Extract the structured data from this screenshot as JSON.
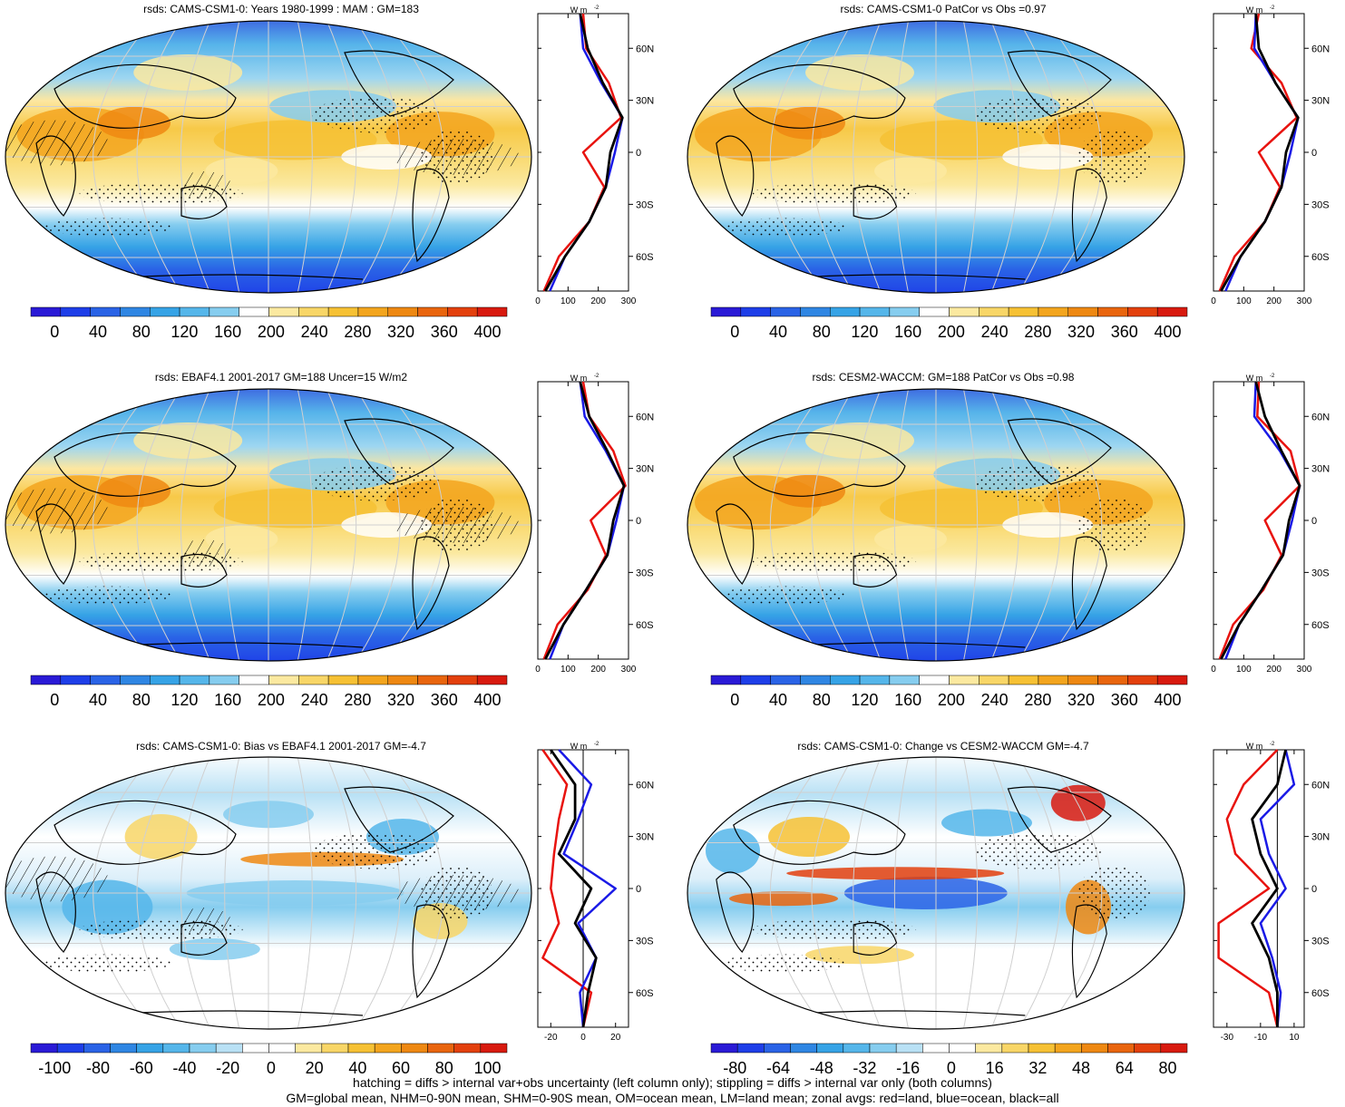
{
  "panels": [
    {
      "id": "p1",
      "title": "rsds: CAMS-CSM1-0: Years 1980-1999 : MAM : GM=183",
      "kind": "abs",
      "cbar_labels": [
        "0",
        "40",
        "80",
        "120",
        "160",
        "200",
        "240",
        "280",
        "320",
        "360",
        "400"
      ],
      "zonal_xticks": [
        "0",
        "100",
        "200",
        "300"
      ],
      "zonal_xlim": [
        0,
        300
      ]
    },
    {
      "id": "p2",
      "title": "rsds: CAMS-CSM1-0 PatCor vs Obs =0.97",
      "kind": "abs",
      "cbar_labels": [
        "0",
        "40",
        "80",
        "120",
        "160",
        "200",
        "240",
        "280",
        "320",
        "360",
        "400"
      ],
      "zonal_xticks": [
        "0",
        "100",
        "200",
        "300"
      ],
      "zonal_xlim": [
        0,
        300
      ]
    },
    {
      "id": "p3",
      "title": "rsds: EBAF4.1 2001-2017 GM=188 Uncer=15 W/m2",
      "kind": "abs",
      "cbar_labels": [
        "0",
        "40",
        "80",
        "120",
        "160",
        "200",
        "240",
        "280",
        "320",
        "360",
        "400"
      ],
      "zonal_xticks": [
        "0",
        "100",
        "200",
        "300"
      ],
      "zonal_xlim": [
        0,
        300
      ]
    },
    {
      "id": "p4",
      "title": "rsds: CESM2-WACCM: GM=188 PatCor vs Obs =0.98",
      "kind": "abs",
      "cbar_labels": [
        "0",
        "40",
        "80",
        "120",
        "160",
        "200",
        "240",
        "280",
        "320",
        "360",
        "400"
      ],
      "zonal_xticks": [
        "0",
        "100",
        "200",
        "300"
      ],
      "zonal_xlim": [
        0,
        300
      ]
    },
    {
      "id": "p5",
      "title": "rsds: CAMS-CSM1-0: Bias vs EBAF4.1 2001-2017 GM=-4.7",
      "kind": "diff",
      "cbar_labels": [
        "-100",
        "-80",
        "-60",
        "-40",
        "-20",
        "0",
        "20",
        "40",
        "60",
        "80",
        "100"
      ],
      "zonal_xticks": [
        "-20",
        "0",
        "20"
      ],
      "zonal_xlim": [
        -28,
        28
      ]
    },
    {
      "id": "p6",
      "title": "rsds: CAMS-CSM1-0: Change vs CESM2-WACCM GM=-4.7",
      "kind": "diff2",
      "cbar_labels": [
        "-80",
        "-64",
        "-48",
        "-32",
        "-16",
        "0",
        "16",
        "32",
        "48",
        "64",
        "80"
      ],
      "zonal_xticks": [
        "-30",
        "-10",
        "10"
      ],
      "zonal_xlim": [
        -38,
        16
      ]
    }
  ],
  "lat_labels": [
    "60N",
    "30N",
    "0",
    "30S",
    "60S"
  ],
  "zonal_units": "W m",
  "zonal_units_sup": "-2",
  "colors": {
    "abs": [
      "#2a1ad6",
      "#1e3ee8",
      "#2a63e6",
      "#2f86e3",
      "#36a3e6",
      "#55b6ea",
      "#86cdef",
      "#ffffff",
      "#fbe9a0",
      "#f8d667",
      "#f6c134",
      "#f3a51e",
      "#ee8812",
      "#e9650e",
      "#e3400d",
      "#d81a0f"
    ],
    "diff": [
      "#2a1ad6",
      "#1e3ee8",
      "#2a63e6",
      "#2f86e3",
      "#36a3e6",
      "#55b6ea",
      "#86cdef",
      "#b9e1f5",
      "#ffffff",
      "#ffffff",
      "#fbe9a0",
      "#f8d667",
      "#f6c134",
      "#f3a51e",
      "#ee8812",
      "#e9650e",
      "#e3400d",
      "#d81a0f"
    ]
  },
  "chart_data": [
    {
      "type": "heatmap",
      "title": "rsds: CAMS-CSM1-0: Years 1980-1999 : MAM : GM=183",
      "zonal_mean": {
        "lat": [
          80,
          60,
          40,
          20,
          0,
          -20,
          -40,
          -60,
          -80
        ],
        "all": [
          140,
          165,
          215,
          280,
          240,
          225,
          170,
          90,
          25
        ],
        "land": [
          150,
          160,
          235,
          275,
          150,
          220,
          170,
          70,
          20
        ],
        "ocean": [
          140,
          150,
          210,
          280,
          255,
          225,
          170,
          90,
          40
        ]
      }
    },
    {
      "type": "heatmap",
      "title": "rsds: CAMS-CSM1-0 PatCor vs Obs =0.97",
      "zonal_mean": {
        "lat": [
          80,
          60,
          40,
          20,
          0,
          -20,
          -40,
          -60,
          -80
        ],
        "all": [
          140,
          150,
          205,
          280,
          240,
          225,
          170,
          90,
          25
        ],
        "land": [
          150,
          125,
          225,
          275,
          150,
          220,
          170,
          70,
          20
        ],
        "ocean": [
          140,
          135,
          205,
          280,
          255,
          225,
          170,
          90,
          40
        ]
      }
    },
    {
      "type": "heatmap",
      "title": "rsds: EBAF4.1 2001-2017 GM=188 Uncer=15 W/m2",
      "zonal_mean": {
        "lat": [
          80,
          60,
          40,
          20,
          0,
          -20,
          -40,
          -60,
          -80
        ],
        "all": [
          140,
          170,
          230,
          285,
          250,
          230,
          160,
          85,
          25
        ],
        "land": [
          150,
          170,
          250,
          290,
          175,
          225,
          165,
          65,
          20
        ],
        "ocean": [
          140,
          155,
          225,
          285,
          260,
          230,
          160,
          85,
          40
        ]
      }
    },
    {
      "type": "heatmap",
      "title": "rsds: CESM2-WACCM: GM=188 PatCor vs Obs =0.98",
      "zonal_mean": {
        "lat": [
          80,
          60,
          40,
          20,
          0,
          -20,
          -40,
          -60,
          -80
        ],
        "all": [
          140,
          170,
          225,
          285,
          250,
          230,
          160,
          85,
          25
        ],
        "land": [
          150,
          145,
          255,
          285,
          170,
          225,
          165,
          65,
          20
        ],
        "ocean": [
          140,
          135,
          220,
          285,
          260,
          230,
          160,
          85,
          40
        ]
      }
    },
    {
      "type": "heatmap",
      "title": "rsds: CAMS-CSM1-0: Bias vs EBAF4.1 2001-2017 GM=-4.7",
      "zonal_mean": {
        "lat": [
          80,
          60,
          40,
          20,
          0,
          -20,
          -40,
          -60,
          -80
        ],
        "all": [
          -20,
          -5,
          -5,
          -15,
          5,
          -5,
          8,
          3,
          0
        ],
        "land": [
          -25,
          -10,
          -15,
          -18,
          -20,
          -15,
          -25,
          5,
          0
        ],
        "ocean": [
          -15,
          5,
          -3,
          -12,
          20,
          -3,
          8,
          -2,
          0
        ]
      }
    },
    {
      "type": "heatmap",
      "title": "rsds: CAMS-CSM1-0: Change vs CESM2-WACCM GM=-4.7",
      "zonal_mean": {
        "lat": [
          80,
          60,
          40,
          20,
          0,
          -20,
          -40,
          -60,
          -80
        ],
        "all": [
          5,
          0,
          -15,
          -10,
          0,
          -15,
          -5,
          0,
          0
        ],
        "land": [
          0,
          -20,
          -30,
          -25,
          -5,
          -35,
          -35,
          -5,
          0
        ],
        "ocean": [
          5,
          10,
          -10,
          -5,
          5,
          -10,
          -3,
          2,
          0
        ]
      }
    }
  ],
  "footer": [
    "hatching = diffs > internal var+obs uncertainty (left column only); stippling = diffs > internal var only (both columns)",
    "GM=global mean, NHM=0-90N mean, SHM=0-90S mean, OM=ocean mean, LM=land mean; zonal avgs: red=land, blue=ocean, black=all"
  ]
}
